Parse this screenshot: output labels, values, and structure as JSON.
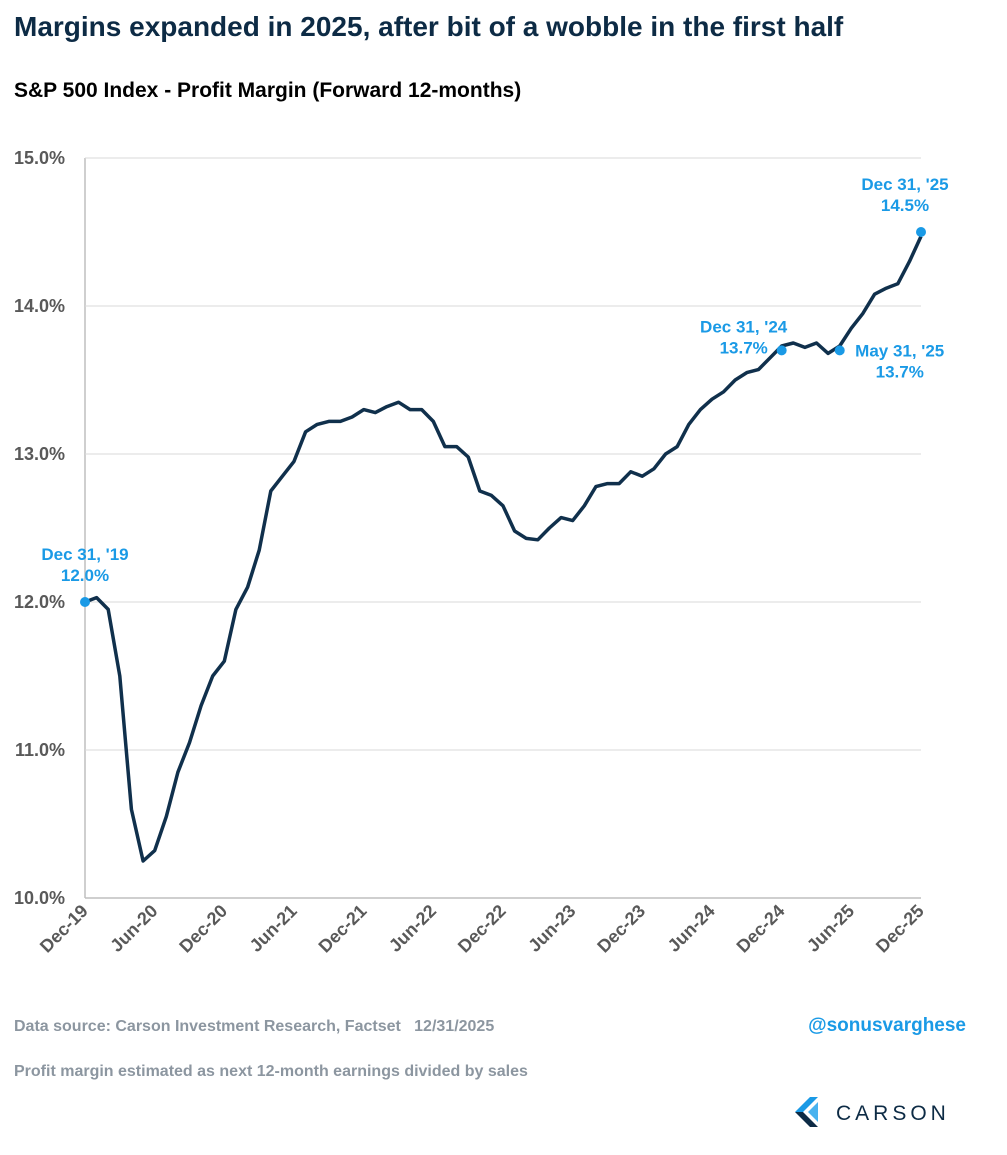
{
  "chart_data": {
    "type": "line",
    "title": "Margins expanded in 2025, after bit of a wobble in the first half",
    "subtitle": "S&P 500 Index - Profit Margin (Forward 12-months)",
    "categories": [
      "Dec-19",
      null,
      null,
      null,
      null,
      null,
      "Jun-20",
      null,
      null,
      null,
      null,
      null,
      "Dec-20",
      null,
      null,
      null,
      null,
      null,
      "Jun-21",
      null,
      null,
      null,
      null,
      null,
      "Dec-21",
      null,
      null,
      null,
      null,
      null,
      "Jun-22",
      null,
      null,
      null,
      null,
      null,
      "Dec-22",
      null,
      null,
      null,
      null,
      null,
      "Jun-23",
      null,
      null,
      null,
      null,
      null,
      "Dec-23",
      null,
      null,
      null,
      null,
      null,
      "Jun-24",
      null,
      null,
      null,
      null,
      null,
      "Dec-24",
      null,
      null,
      null,
      null,
      null,
      "Jun-25",
      null,
      null,
      null,
      null,
      null,
      "Dec-25"
    ],
    "series": [
      {
        "name": "S&P 500 Profit Margin",
        "color": "#10304c",
        "values": [
          12.0,
          12.03,
          11.95,
          11.5,
          10.6,
          10.25,
          10.32,
          10.55,
          10.85,
          11.05,
          11.3,
          11.5,
          11.6,
          11.95,
          12.1,
          12.35,
          12.75,
          12.85,
          12.95,
          13.15,
          13.2,
          13.22,
          13.22,
          13.25,
          13.3,
          13.28,
          13.32,
          13.35,
          13.3,
          13.3,
          13.22,
          13.05,
          13.05,
          12.98,
          12.75,
          12.72,
          12.65,
          12.48,
          12.43,
          12.42,
          12.5,
          12.57,
          12.55,
          12.65,
          12.78,
          12.8,
          12.8,
          12.88,
          12.85,
          12.9,
          13.0,
          13.05,
          13.2,
          13.3,
          13.37,
          13.42,
          13.5,
          13.55,
          13.57,
          13.65,
          13.73,
          13.75,
          13.72,
          13.75,
          13.68,
          13.73,
          13.85,
          13.95,
          14.08,
          14.12,
          14.15,
          14.3,
          14.47
        ]
      }
    ],
    "ylim": [
      10,
      15
    ],
    "yticks": [
      {
        "value": 10,
        "label": "10.0%"
      },
      {
        "value": 11,
        "label": "11.0%"
      },
      {
        "value": 12,
        "label": "12.0%"
      },
      {
        "value": 13,
        "label": "13.0%"
      },
      {
        "value": 14,
        "label": "14.0%"
      },
      {
        "value": 15,
        "label": "15.0%"
      }
    ],
    "grid": true,
    "annotations": [
      {
        "label": "Dec 31, '19",
        "value": 12.0,
        "value_label": "12.0%",
        "color": "#1a9ae6"
      },
      {
        "label": "Dec 31, '24",
        "value": 13.7,
        "value_label": "13.7%",
        "color": "#1a9ae6"
      },
      {
        "label": "May 31, '25",
        "value": 13.7,
        "value_label": "13.7%",
        "color": "#1a9ae6"
      },
      {
        "label": "Dec 31, '25",
        "value": 14.5,
        "value_label": "14.5%",
        "color": "#1a9ae6"
      }
    ],
    "source": "Data source: Carson Investment Research, Factset   12/31/2025",
    "note": "Profit margin estimated as next 12-month earnings divided by sales",
    "handle": "@sonusvarghese",
    "brand": "CARSON"
  }
}
